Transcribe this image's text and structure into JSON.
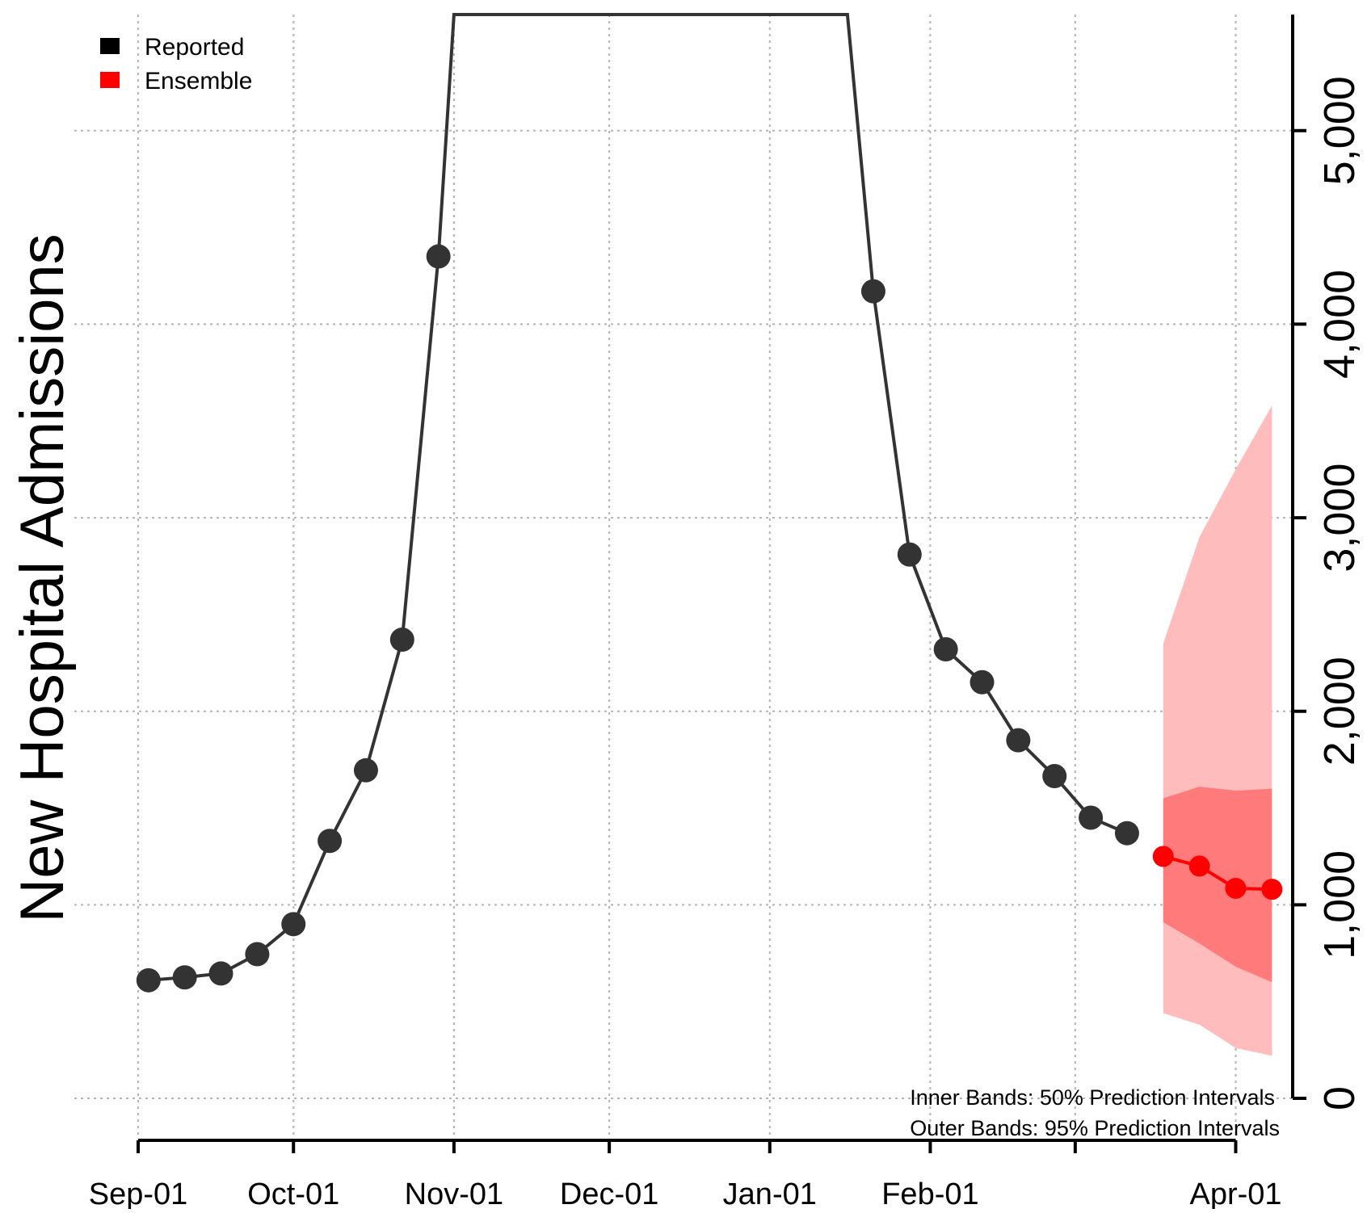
{
  "chart_data": {
    "type": "line",
    "ylabel": "New Hospital Admissions",
    "xlabel": "",
    "title": "",
    "x_tick_labels": [
      "Sep-01",
      "Oct-01",
      "Nov-01",
      "Dec-01",
      "Jan-01",
      "Feb-01",
      "Apr-01"
    ],
    "x_tick_dates": [
      "2020-09-01",
      "2020-10-01",
      "2020-11-01",
      "2020-12-01",
      "2021-01-01",
      "2021-02-01",
      "2021-04-01"
    ],
    "y_tick_labels": [
      "0",
      "1,000",
      "2,000",
      "3,000",
      "4,000",
      "5,000"
    ],
    "y_tick_values": [
      0,
      1000,
      2000,
      3000,
      4000,
      5000
    ],
    "xlim": [
      "2020-09-01",
      "2021-04-12"
    ],
    "ylim": [
      0,
      5600
    ],
    "grid": true,
    "legend": {
      "position": "top-left",
      "items": [
        {
          "label": "Reported",
          "color": "#000000"
        },
        {
          "label": "Ensemble",
          "color": "#ff0000"
        }
      ]
    },
    "annotations": [
      "Inner Bands: 50% Prediction Intervals",
      "Outer Bands: 95% Prediction Intervals"
    ],
    "series": [
      {
        "name": "Reported",
        "color": "#333333",
        "points": [
          {
            "x": "2020-09-03",
            "y": 610
          },
          {
            "x": "2020-09-10",
            "y": 625
          },
          {
            "x": "2020-09-17",
            "y": 645
          },
          {
            "x": "2020-09-24",
            "y": 745
          },
          {
            "x": "2020-10-01",
            "y": 900
          },
          {
            "x": "2020-10-08",
            "y": 1330
          },
          {
            "x": "2020-10-15",
            "y": 1695
          },
          {
            "x": "2020-10-22",
            "y": 2370
          },
          {
            "x": "2020-10-29",
            "y": 4350
          },
          {
            "x": "2021-01-21",
            "y": 4170
          },
          {
            "x": "2021-01-28",
            "y": 2810
          },
          {
            "x": "2021-02-04",
            "y": 2320
          },
          {
            "x": "2021-02-11",
            "y": 2150
          },
          {
            "x": "2021-02-18",
            "y": 1850
          },
          {
            "x": "2021-02-25",
            "y": 1665
          },
          {
            "x": "2021-03-04",
            "y": 1450
          },
          {
            "x": "2021-03-11",
            "y": 1370
          }
        ],
        "offscale_points": [
          {
            "x": "2020-11-01",
            "y": 5600
          },
          {
            "x": "2021-01-16",
            "y": 5600
          }
        ]
      },
      {
        "name": "Ensemble",
        "color": "#ff0000",
        "points": [
          {
            "x": "2021-03-18",
            "y": 1250
          },
          {
            "x": "2021-03-25",
            "y": 1200
          },
          {
            "x": "2021-04-01",
            "y": 1085
          },
          {
            "x": "2021-04-08",
            "y": 1080
          }
        ],
        "pi50_lower": [
          910,
          800,
          680,
          600
        ],
        "pi50_upper": [
          1550,
          1610,
          1590,
          1600
        ],
        "pi95_lower": [
          440,
          380,
          260,
          220
        ],
        "pi95_upper": [
          2350,
          2900,
          3250,
          3580
        ]
      }
    ]
  }
}
